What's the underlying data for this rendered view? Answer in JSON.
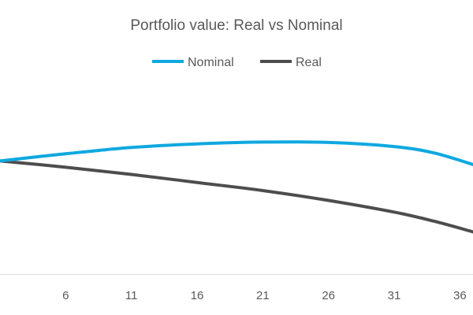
{
  "chart_data": {
    "type": "line",
    "title": "Portfolio value: Real vs Nominal",
    "xlabel": "",
    "ylabel": "",
    "legend_position": "top",
    "grid": false,
    "x_ticks": [
      6,
      11,
      16,
      21,
      26,
      31,
      36
    ],
    "x_tick_labels": [
      "6",
      "11",
      "16",
      "21",
      "26",
      "31",
      "36"
    ],
    "xlim": [
      1,
      37
    ],
    "ylim": [
      0,
      100
    ],
    "x": [
      1,
      6,
      11,
      16,
      21,
      26,
      31,
      34,
      37
    ],
    "series": [
      {
        "name": "Nominal",
        "color": "#0fa8e0",
        "values": [
          63,
          67,
          70.5,
          72.5,
          73.5,
          73.3,
          71,
          67.5,
          61
        ]
      },
      {
        "name": "Real",
        "color": "#4d4d4d",
        "values": [
          63,
          59.5,
          55.5,
          51,
          46.5,
          41,
          34.5,
          29.5,
          23.5
        ]
      }
    ]
  }
}
